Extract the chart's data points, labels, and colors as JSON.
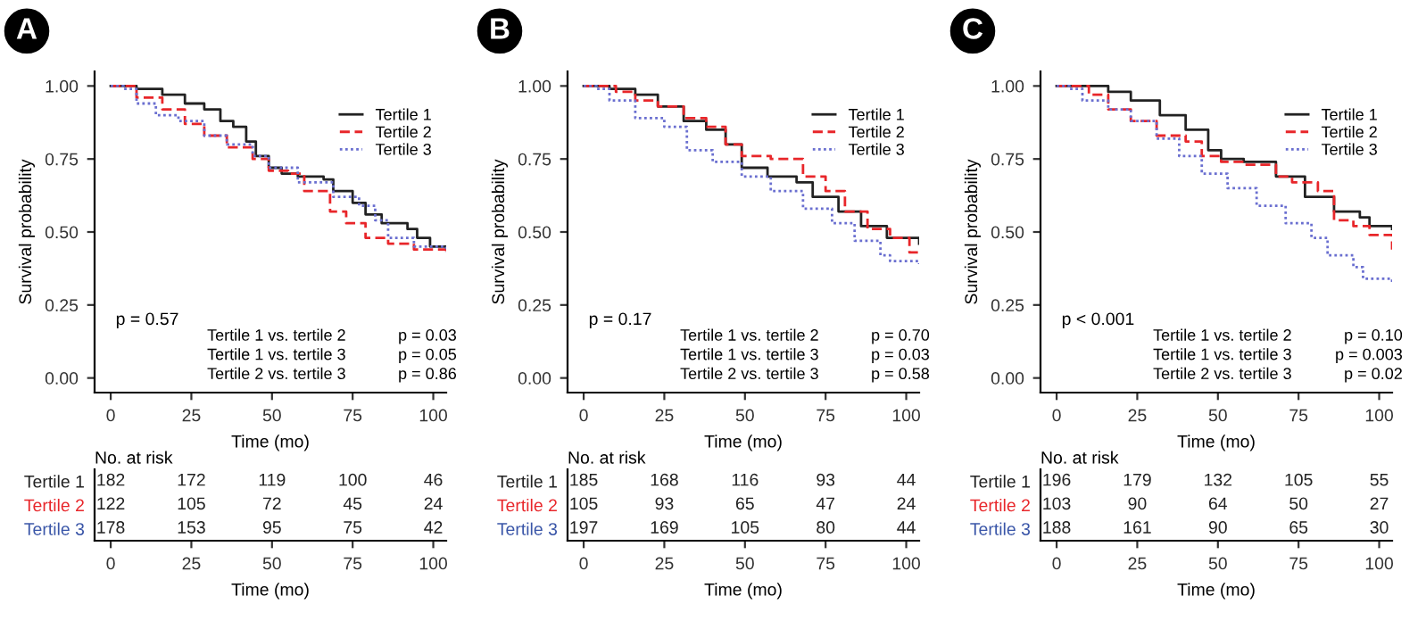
{
  "chart_data": [
    {
      "type": "step",
      "title": "A",
      "xlabel": "Time (mo)",
      "ylabel": "Survival probability",
      "xlim": [
        -5,
        104
      ],
      "xticks": [
        0,
        25,
        50,
        75,
        100
      ],
      "ylim": [
        -0.05,
        1.05
      ],
      "yticks": [
        {
          "value": 0,
          "label": "0.00"
        },
        {
          "value": 0.25,
          "label": "0.25"
        },
        {
          "value": 0.5,
          "label": "0.50"
        },
        {
          "value": 0.75,
          "label": "0.75"
        },
        {
          "value": 1,
          "label": "1.00"
        }
      ],
      "legend": "top right",
      "grid": false,
      "annotations": [
        "p = 0.57",
        "Tertile 1 vs. tertile 2",
        "p = 0.03",
        "Tertile 1 vs. tertile 3",
        "p = 0.05",
        "Tertile 2 vs. tertile 3",
        "p = 0.86"
      ],
      "series": [
        {
          "name": "Tertile 1",
          "color": "#222222",
          "line_style": "solid",
          "x": [
            0,
            4,
            8,
            16,
            23,
            29,
            34,
            38,
            42,
            45,
            49,
            53,
            58,
            66,
            69,
            75,
            79,
            84,
            92,
            95,
            99,
            104
          ],
          "values": [
            1.0,
            1.0,
            0.99,
            0.97,
            0.94,
            0.92,
            0.88,
            0.86,
            0.81,
            0.76,
            0.72,
            0.7,
            0.69,
            0.68,
            0.64,
            0.6,
            0.56,
            0.53,
            0.51,
            0.48,
            0.45,
            0.44
          ]
        },
        {
          "name": "Tertile 2",
          "color": "#e8262a",
          "line_style": "dashed",
          "x": [
            0,
            4,
            8,
            16,
            23,
            29,
            36,
            44,
            49,
            55,
            60,
            68,
            73,
            79,
            86,
            94,
            104
          ],
          "values": [
            1.0,
            1.0,
            0.96,
            0.92,
            0.87,
            0.83,
            0.79,
            0.75,
            0.71,
            0.7,
            0.64,
            0.57,
            0.53,
            0.48,
            0.46,
            0.44,
            0.42
          ]
        },
        {
          "name": "Tertile 3",
          "color": "#6a6fd0",
          "line_style": "dotted",
          "x": [
            0,
            4,
            8,
            14,
            21,
            29,
            36,
            44,
            49,
            58,
            69,
            77,
            82,
            86,
            94,
            104
          ],
          "values": [
            1.0,
            0.99,
            0.94,
            0.9,
            0.88,
            0.83,
            0.8,
            0.76,
            0.72,
            0.67,
            0.62,
            0.59,
            0.54,
            0.48,
            0.45,
            0.43
          ]
        }
      ]
    },
    {
      "type": "step",
      "title": "B",
      "xlabel": "Time (mo)",
      "ylabel": "Survival probability",
      "xlim": [
        -5,
        104
      ],
      "xticks": [
        0,
        25,
        50,
        75,
        100
      ],
      "ylim": [
        -0.05,
        1.05
      ],
      "yticks": [
        {
          "value": 0,
          "label": "0.00"
        },
        {
          "value": 0.25,
          "label": "0.25"
        },
        {
          "value": 0.5,
          "label": "0.50"
        },
        {
          "value": 0.75,
          "label": "0.75"
        },
        {
          "value": 1,
          "label": "1.00"
        }
      ],
      "legend": "top right",
      "grid": false,
      "annotations": [
        "p = 0.17",
        "Tertile 1 vs. tertile 2",
        "p = 0.70",
        "Tertile 1 vs. tertile 3",
        "p = 0.03",
        "Tertile 2 vs. tertile 3",
        "p = 0.58"
      ],
      "series": [
        {
          "name": "Tertile 1",
          "color": "#222222",
          "line_style": "solid",
          "x": [
            0,
            4,
            8,
            16,
            23,
            31,
            38,
            44,
            49,
            57,
            66,
            71,
            79,
            86,
            94,
            104
          ],
          "values": [
            1.0,
            1.0,
            0.99,
            0.97,
            0.93,
            0.88,
            0.85,
            0.8,
            0.72,
            0.69,
            0.67,
            0.62,
            0.57,
            0.52,
            0.48,
            0.46
          ]
        },
        {
          "name": "Tertile 2",
          "color": "#e8262a",
          "line_style": "dashed",
          "x": [
            0,
            4,
            10,
            16,
            23,
            31,
            38,
            44,
            49,
            58,
            68,
            75,
            81,
            88,
            95,
            101,
            104
          ],
          "values": [
            1.0,
            1.0,
            0.98,
            0.95,
            0.93,
            0.89,
            0.86,
            0.8,
            0.76,
            0.75,
            0.69,
            0.64,
            0.57,
            0.51,
            0.48,
            0.43,
            0.43
          ]
        },
        {
          "name": "Tertile 3",
          "color": "#6a6fd0",
          "line_style": "dotted",
          "x": [
            0,
            4,
            8,
            16,
            25,
            32,
            40,
            49,
            58,
            68,
            77,
            84,
            92,
            95,
            104
          ],
          "values": [
            1.0,
            0.99,
            0.95,
            0.89,
            0.86,
            0.78,
            0.74,
            0.69,
            0.64,
            0.58,
            0.53,
            0.47,
            0.42,
            0.4,
            0.39
          ]
        }
      ]
    },
    {
      "type": "step",
      "title": "C",
      "xlabel": "Time (mo)",
      "ylabel": "Survival probability",
      "xlim": [
        -5,
        104
      ],
      "xticks": [
        0,
        25,
        50,
        75,
        100
      ],
      "ylim": [
        -0.05,
        1.05
      ],
      "yticks": [
        {
          "value": 0,
          "label": "0.00"
        },
        {
          "value": 0.25,
          "label": "0.25"
        },
        {
          "value": 0.5,
          "label": "0.50"
        },
        {
          "value": 0.75,
          "label": "0.75"
        },
        {
          "value": 1,
          "label": "1.00"
        }
      ],
      "legend": "top right",
      "grid": false,
      "annotations": [
        "p < 0.001",
        "Tertile 1 vs. tertile 2",
        "p = 0.10",
        "Tertile 1 vs. tertile 3",
        "p = 0.003",
        "Tertile 2 vs. tertile 3",
        "p = 0.02"
      ],
      "series": [
        {
          "name": "Tertile 1",
          "color": "#222222",
          "line_style": "solid",
          "x": [
            0,
            4,
            16,
            23,
            32,
            40,
            47,
            51,
            58,
            68,
            77,
            86,
            94,
            97,
            104
          ],
          "values": [
            1.0,
            1.0,
            0.98,
            0.95,
            0.9,
            0.85,
            0.78,
            0.75,
            0.74,
            0.69,
            0.62,
            0.57,
            0.55,
            0.52,
            0.51
          ]
        },
        {
          "name": "Tertile 2",
          "color": "#e8262a",
          "line_style": "dashed",
          "x": [
            0,
            4,
            10,
            16,
            23,
            31,
            40,
            45,
            51,
            58,
            68,
            73,
            81,
            86,
            92,
            97,
            104
          ],
          "values": [
            1.0,
            1.0,
            0.97,
            0.92,
            0.88,
            0.83,
            0.81,
            0.76,
            0.74,
            0.73,
            0.69,
            0.67,
            0.64,
            0.54,
            0.52,
            0.49,
            0.44
          ]
        },
        {
          "name": "Tertile 3",
          "color": "#6a6fd0",
          "line_style": "dotted",
          "x": [
            0,
            4,
            8,
            16,
            23,
            31,
            38,
            45,
            53,
            62,
            71,
            79,
            84,
            92,
            95,
            104
          ],
          "values": [
            1.0,
            0.99,
            0.95,
            0.92,
            0.88,
            0.82,
            0.76,
            0.7,
            0.65,
            0.59,
            0.53,
            0.48,
            0.42,
            0.38,
            0.34,
            0.32
          ]
        }
      ]
    },
    {
      "type": "heatmap",
      "title": "No. at risk",
      "xlabel": "Time (mo)",
      "xlim": [
        -5,
        104
      ],
      "xticks": [
        0,
        25,
        50,
        75,
        100
      ],
      "x": [
        0,
        25,
        50,
        75,
        100
      ],
      "data_labels": true,
      "y_categories": [
        "Tertile 1",
        "Tertile 2",
        "Tertile 3"
      ],
      "colors": [
        "#222222",
        "#e8262a",
        "#3a56a8"
      ],
      "cells": [
        [
          182,
          172,
          119,
          100,
          46
        ],
        [
          122,
          105,
          72,
          45,
          24
        ],
        [
          178,
          153,
          95,
          75,
          42
        ]
      ]
    },
    {
      "type": "heatmap",
      "title": "No. at risk",
      "xlabel": "Time (mo)",
      "xlim": [
        -5,
        104
      ],
      "xticks": [
        0,
        25,
        50,
        75,
        100
      ],
      "x": [
        0,
        25,
        50,
        75,
        100
      ],
      "data_labels": true,
      "y_categories": [
        "Tertile 1",
        "Tertile 2",
        "Tertile 3"
      ],
      "colors": [
        "#222222",
        "#e8262a",
        "#3a56a8"
      ],
      "cells": [
        [
          185,
          168,
          116,
          93,
          44
        ],
        [
          105,
          93,
          65,
          47,
          24
        ],
        [
          197,
          169,
          105,
          80,
          44
        ]
      ]
    },
    {
      "type": "heatmap",
      "title": "No. at risk",
      "xlabel": "Time (mo)",
      "xlim": [
        -5,
        104
      ],
      "xticks": [
        0,
        25,
        50,
        75,
        100
      ],
      "x": [
        0,
        25,
        50,
        75,
        100
      ],
      "data_labels": true,
      "y_categories": [
        "Tertile 1",
        "Tertile 2",
        "Tertile 3"
      ],
      "colors": [
        "#222222",
        "#e8262a",
        "#3a56a8"
      ],
      "cells": [
        [
          196,
          179,
          132,
          105,
          55
        ],
        [
          103,
          90,
          64,
          50,
          27
        ],
        [
          188,
          161,
          90,
          65,
          30
        ]
      ]
    }
  ]
}
